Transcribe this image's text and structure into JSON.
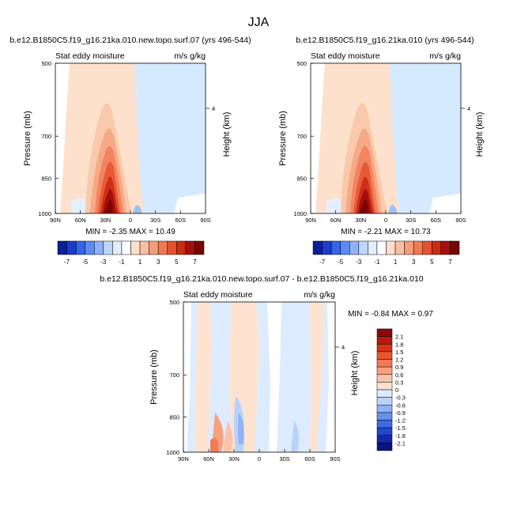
{
  "page_title": "JJA",
  "colors": {
    "bg_lightblue": "#d6eaff",
    "bg_lightorange": "#fde1cc"
  },
  "chart_data": [
    {
      "id": "left",
      "type": "heatmap",
      "title": "b.e12.B1850C5.f19_g16.21ka.010.new.topo.surf.07 (yrs 496-544)",
      "variable": "Stat eddy moisture",
      "units": "m/s g/kg",
      "ylabel": "Pressure (mb)",
      "ylabel_right": "Height (km)",
      "xticks": [
        "90N",
        "60N",
        "30N",
        "0",
        "30S",
        "60S",
        "90S"
      ],
      "yticks": [
        "500",
        "700",
        "850",
        "1000"
      ],
      "right_ticks": [
        "4"
      ],
      "minmax": "MIN = -2.35   MAX = 10.49",
      "colorbar_labels": [
        "-7",
        "-5",
        "-3",
        "-1",
        "1",
        "3",
        "5",
        "7"
      ],
      "colorbar_colors": [
        "#0b1f9a",
        "#1a3ccf",
        "#3565e6",
        "#5c8af0",
        "#8fb1f7",
        "#bfd5fb",
        "#dfeeff",
        "#ffffff",
        "#fde0cc",
        "#f8bfa2",
        "#f59c7a",
        "#f07a52",
        "#e5512d",
        "#cc2b14",
        "#a3100b",
        "#7a0505"
      ]
    },
    {
      "id": "right",
      "type": "heatmap",
      "title": "b.e12.B1850C5.f19_g16.21ka.010 (yrs 496-544)",
      "variable": "Stat eddy moisture",
      "units": "m/s g/kg",
      "ylabel": "Pressure (mb)",
      "ylabel_right": "Height (km)",
      "xticks": [
        "90N",
        "60N",
        "30N",
        "0",
        "30S",
        "60S",
        "90S"
      ],
      "yticks": [
        "500",
        "700",
        "850",
        "1000"
      ],
      "right_ticks": [
        "4"
      ],
      "minmax": "MIN = -2.21   MAX = 10.73",
      "colorbar_labels": [
        "-7",
        "-5",
        "-3",
        "-1",
        "1",
        "3",
        "5",
        "7"
      ],
      "colorbar_colors": [
        "#0b1f9a",
        "#1a3ccf",
        "#3565e6",
        "#5c8af0",
        "#8fb1f7",
        "#bfd5fb",
        "#dfeeff",
        "#ffffff",
        "#fde0cc",
        "#f8bfa2",
        "#f59c7a",
        "#f07a52",
        "#e5512d",
        "#cc2b14",
        "#a3100b",
        "#7a0505"
      ]
    },
    {
      "id": "diff",
      "type": "heatmap",
      "title": "b.e12.B1850C5.f19_g16.21ka.010.new.topo.surf.07 - b.e12.B1850C5.f19_g16.21ka.010",
      "variable": "Stat eddy moisture",
      "units": "m/s g/kg",
      "ylabel": "Pressure (mb)",
      "ylabel_right": "Height (km)",
      "xticks": [
        "90N",
        "60N",
        "30N",
        "0",
        "30S",
        "60S",
        "90S"
      ],
      "yticks": [
        "500",
        "700",
        "850",
        "1000"
      ],
      "right_ticks": [
        "4"
      ],
      "minmax": "MIN = -0.84   MAX =  0.97",
      "colorbar_labels": [
        "2.1",
        "1.8",
        "1.5",
        "1.2",
        "0.9",
        "0.6",
        "0.3",
        "0",
        "-0.3",
        "-0.6",
        "-0.9",
        "-1.2",
        "-1.5",
        "-1.8",
        "-2.1"
      ],
      "colorbar_colors": [
        "#8c0a0a",
        "#b8180e",
        "#d83218",
        "#ec5330",
        "#f47a55",
        "#f8a07e",
        "#fbc3a8",
        "#fde2d0",
        "#ddebff",
        "#b9d2fb",
        "#8fb3f6",
        "#6290ee",
        "#3f6be2",
        "#2446cf",
        "#1428a8",
        "#0b1480"
      ]
    }
  ]
}
